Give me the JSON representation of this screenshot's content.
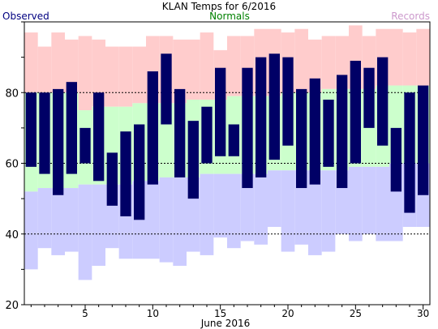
{
  "chart_data": {
    "type": "bar",
    "title": "KLAN Temps for 6/2016",
    "legend": {
      "observed": "Observed",
      "normals": "Normals",
      "records": "Records",
      "placement": "top"
    },
    "xlabel": "June 2016",
    "x_ticks": [
      5,
      10,
      15,
      20,
      25,
      30
    ],
    "y_ticks": [
      20,
      40,
      60,
      80
    ],
    "ylim": [
      20,
      100
    ],
    "xlim": [
      0.5,
      30.5
    ],
    "reference_lines": [
      40,
      60,
      80
    ],
    "colors": {
      "observed": "#000066",
      "normals": "#ccffcc",
      "records": "#ffcccc",
      "record_low_band": "#ccccff",
      "observed_legend": "#000080",
      "normals_legend": "#008000",
      "records_legend": "#cc99cc"
    },
    "days": [
      1,
      2,
      3,
      4,
      5,
      6,
      7,
      8,
      9,
      10,
      11,
      12,
      13,
      14,
      15,
      16,
      17,
      18,
      19,
      20,
      21,
      22,
      23,
      24,
      25,
      26,
      27,
      28,
      29,
      30
    ],
    "series": [
      {
        "name": "Observed",
        "key": "obs_high",
        "values": [
          80,
          80,
          81,
          83,
          70,
          80,
          63,
          69,
          71,
          86,
          91,
          81,
          72,
          76,
          87,
          71,
          87,
          90,
          91,
          90,
          81,
          84,
          78,
          85,
          89,
          87,
          90,
          70,
          80,
          82
        ]
      },
      {
        "key": "obs_low",
        "values": [
          59,
          57,
          51,
          57,
          60,
          55,
          48,
          45,
          44,
          54,
          71,
          56,
          50,
          60,
          62,
          62,
          53,
          56,
          61,
          65,
          53,
          54,
          59,
          53,
          60,
          70,
          65,
          52,
          46,
          51
        ]
      },
      {
        "name": "Normals",
        "key": "norm_high",
        "values": [
          80,
          80,
          80,
          80,
          75,
          76,
          76,
          76,
          77,
          77,
          77,
          77,
          78,
          78,
          78,
          79,
          79,
          79,
          79,
          80,
          80,
          80,
          81,
          81,
          81,
          81,
          82,
          82,
          82,
          82
        ]
      },
      {
        "key": "norm_low",
        "values": [
          52,
          53,
          53,
          53,
          54,
          54,
          54,
          54,
          55,
          55,
          56,
          56,
          56,
          57,
          57,
          57,
          57,
          57,
          58,
          58,
          58,
          58,
          58,
          58,
          59,
          59,
          59,
          60,
          60,
          60
        ]
      },
      {
        "name": "Records",
        "key": "rec_high",
        "values": [
          97,
          93,
          97,
          95,
          96,
          95,
          93,
          93,
          93,
          96,
          96,
          95,
          95,
          97,
          92,
          96,
          96,
          98,
          98,
          97,
          98,
          95,
          96,
          96,
          99,
          96,
          98,
          98,
          97,
          98
        ]
      },
      {
        "key": "rec_low",
        "values": [
          30,
          36,
          34,
          35,
          27,
          31,
          36,
          33,
          33,
          33,
          32,
          31,
          35,
          34,
          39,
          36,
          38,
          37,
          42,
          35,
          37,
          34,
          35,
          40,
          38,
          40,
          38,
          38,
          42,
          42
        ]
      }
    ]
  }
}
